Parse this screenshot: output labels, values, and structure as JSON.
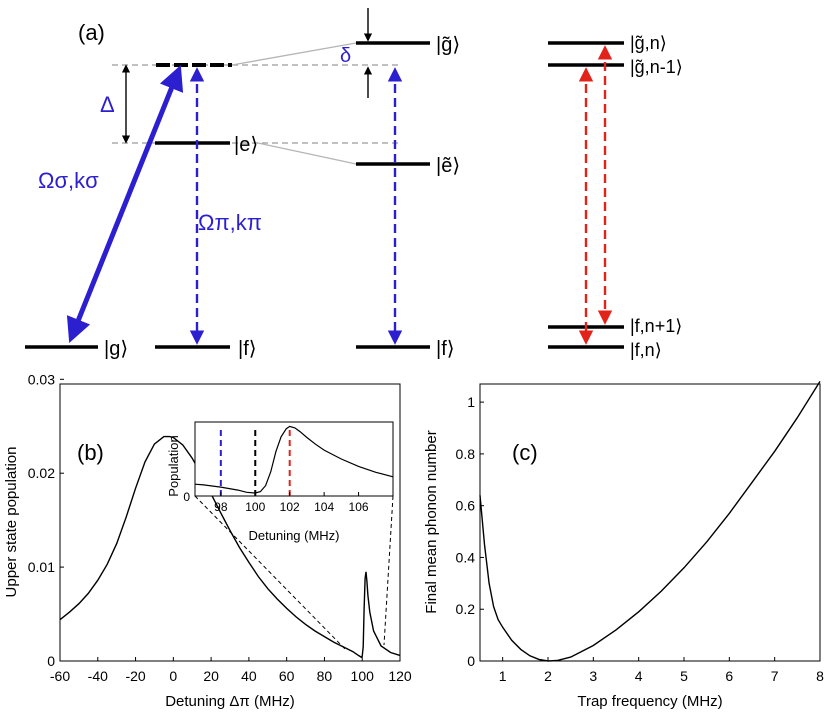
{
  "panel_a": {
    "label": "(a)",
    "detuning_label": "Δ",
    "delta_label": "δ",
    "omega_sigma": "Ωσ,kσ",
    "omega_pi": "Ωπ,kπ",
    "ket_g": "|g⟩",
    "ket_f1": "|f⟩",
    "ket_e": "|e⟩",
    "ket_g_dressed": "|g̃⟩",
    "ket_e_dressed": "|ẽ⟩",
    "ket_f2": "|f⟩",
    "ket_g_n": "|g̃,n⟩",
    "ket_g_n_minus_1": "|g̃,n-1⟩",
    "ket_f_n_plus_1": "|f,n+1⟩",
    "ket_f_n": "|f,n⟩",
    "colors": {
      "blue": "#2b1fd0",
      "red": "#e2231a",
      "gray": "#9a9a9a"
    }
  },
  "chart_data": [
    {
      "panel": "(b)",
      "type": "line",
      "xlabel": "Detuning Δπ (MHz)",
      "ylabel": "Upper state population",
      "xlim": [
        -60,
        120
      ],
      "ylim": [
        0,
        0.0295
      ],
      "xticks": [
        "-60",
        "-40",
        "-20",
        "0",
        "20",
        "40",
        "60",
        "80",
        "100",
        "120"
      ],
      "yticks": [
        "0",
        "0.01",
        "0.02",
        "0.03"
      ],
      "series": [
        {
          "name": "population",
          "x": [
            -60,
            -55,
            -50,
            -45,
            -40,
            -35,
            -30,
            -25,
            -20,
            -15,
            -10,
            -5,
            -2,
            0,
            5,
            10,
            15,
            20,
            25,
            30,
            35,
            40,
            45,
            50,
            55,
            60,
            65,
            70,
            75,
            80,
            85,
            90,
            95,
            98,
            99.5,
            100,
            100.5,
            101,
            101.5,
            102,
            102.5,
            103,
            104,
            106,
            110,
            115,
            120
          ],
          "y": [
            0.0044,
            0.0052,
            0.0061,
            0.0072,
            0.0086,
            0.0103,
            0.0125,
            0.0153,
            0.0184,
            0.0212,
            0.0231,
            0.0239,
            0.0239,
            0.0238,
            0.023,
            0.0216,
            0.0198,
            0.0178,
            0.0158,
            0.0139,
            0.0121,
            0.0105,
            0.009,
            0.0077,
            0.0066,
            0.0056,
            0.0047,
            0.0039,
            0.0032,
            0.0026,
            0.002,
            0.0015,
            0.001,
            0.0006,
            0.0004,
            0.0005,
            0.0015,
            0.0055,
            0.0088,
            0.0095,
            0.0085,
            0.007,
            0.0052,
            0.0032,
            0.0016,
            0.0009,
            0.0006
          ]
        }
      ]
    },
    {
      "panel": "(b) inset",
      "type": "line",
      "xlabel": "Detuning (MHz)",
      "ylabel": "Population",
      "xlim": [
        96.5,
        108
      ],
      "ylim": [
        0,
        1
      ],
      "xticks": [
        "98",
        "100",
        "102",
        "104",
        "106"
      ],
      "yticks": [
        "0"
      ],
      "markers": [
        {
          "x": 98,
          "color": "#2b1fd0"
        },
        {
          "x": 100,
          "color": "#000000"
        },
        {
          "x": 102,
          "color": "#e2231a"
        }
      ],
      "series": [
        {
          "name": "population",
          "x": [
            96.5,
            97,
            98,
            99,
            99.5,
            100,
            100.3,
            100.6,
            100.9,
            101.2,
            101.5,
            101.8,
            102,
            102.3,
            102.6,
            103,
            103.5,
            104,
            105,
            106,
            107,
            108
          ],
          "y": [
            0.16,
            0.15,
            0.12,
            0.08,
            0.05,
            0.04,
            0.06,
            0.14,
            0.33,
            0.6,
            0.8,
            0.91,
            0.94,
            0.92,
            0.87,
            0.79,
            0.7,
            0.62,
            0.5,
            0.4,
            0.32,
            0.26
          ]
        }
      ]
    },
    {
      "panel": "(c)",
      "type": "line",
      "xlabel": "Trap frequency (MHz)",
      "ylabel": "Final mean phonon number",
      "xlim": [
        0.5,
        8
      ],
      "ylim": [
        0,
        1.07
      ],
      "xticks": [
        "1",
        "2",
        "3",
        "4",
        "5",
        "6",
        "7",
        "8"
      ],
      "yticks": [
        "0",
        "0.2",
        "0.4",
        "0.6",
        "0.8",
        "1"
      ],
      "series": [
        {
          "name": "phonon number",
          "x": [
            0.5,
            0.6,
            0.7,
            0.8,
            0.9,
            1.0,
            1.2,
            1.4,
            1.6,
            1.8,
            2.0,
            2.2,
            2.5,
            3,
            3.5,
            4,
            4.5,
            5,
            5.5,
            6,
            6.5,
            7,
            7.5,
            8
          ],
          "y": [
            0.64,
            0.45,
            0.3,
            0.21,
            0.16,
            0.13,
            0.08,
            0.045,
            0.02,
            0.006,
            0.0,
            0.002,
            0.015,
            0.06,
            0.12,
            0.19,
            0.27,
            0.36,
            0.46,
            0.57,
            0.69,
            0.81,
            0.94,
            1.08
          ]
        }
      ]
    }
  ]
}
